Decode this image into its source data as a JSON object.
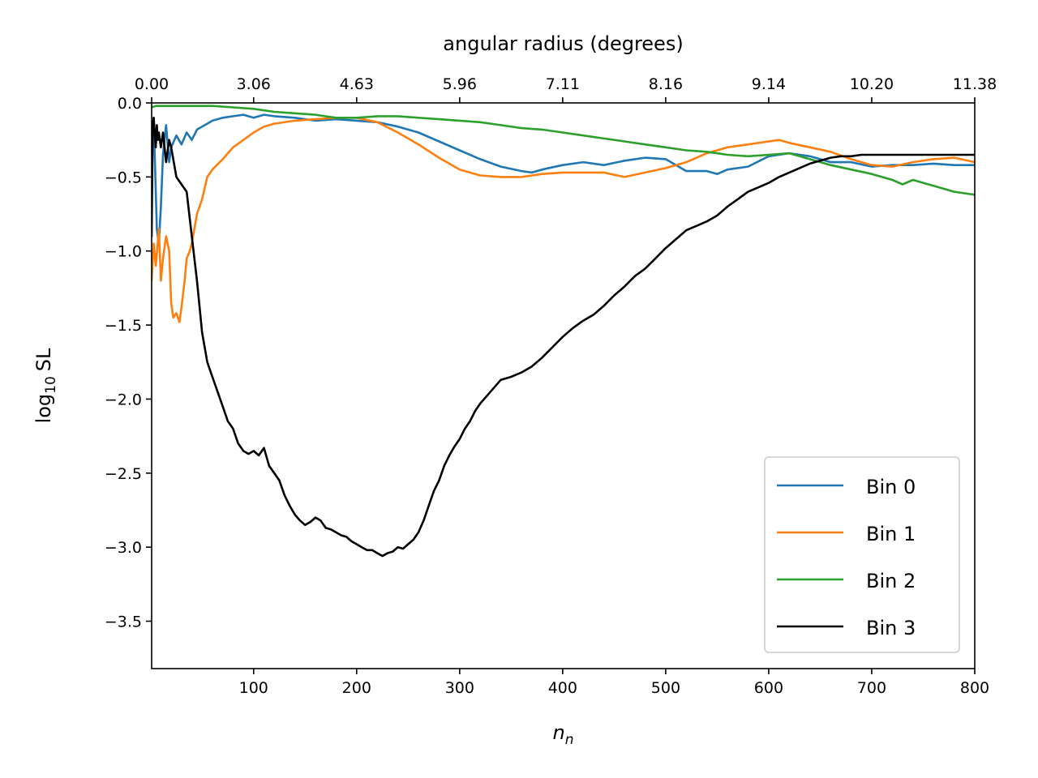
{
  "chart_data": {
    "type": "line",
    "title": "",
    "xlabel": "n_n",
    "ylabel": "log10 SL",
    "top_xlabel": "angular radius (degrees)",
    "xlim": [
      1,
      800
    ],
    "ylim": [
      -3.82,
      0.0
    ],
    "xticks": [
      100,
      200,
      300,
      400,
      500,
      600,
      700,
      800
    ],
    "yticks": [
      0.0,
      -0.5,
      -1.0,
      -1.5,
      -2.0,
      -2.5,
      -3.0,
      -3.5
    ],
    "ytick_labels": [
      "0.0",
      "−0.5",
      "−1.0",
      "−1.5",
      "−2.0",
      "−2.5",
      "−3.0",
      "−3.5"
    ],
    "top_xticks": [
      {
        "n": 1,
        "label": "0.00"
      },
      {
        "n": 100,
        "label": "3.06"
      },
      {
        "n": 200,
        "label": "4.63"
      },
      {
        "n": 300,
        "label": "5.96"
      },
      {
        "n": 400,
        "label": "7.11"
      },
      {
        "n": 500,
        "label": "8.16"
      },
      {
        "n": 600,
        "label": "9.14"
      },
      {
        "n": 700,
        "label": "10.20"
      },
      {
        "n": 800,
        "label": "11.38"
      }
    ],
    "legend_position": "lower-right",
    "grid": false,
    "series": [
      {
        "name": "Bin 0",
        "color": "#1f77b4",
        "x": [
          1,
          3,
          5,
          6,
          8,
          10,
          12,
          15,
          18,
          20,
          25,
          30,
          35,
          40,
          45,
          50,
          55,
          60,
          70,
          80,
          90,
          100,
          110,
          120,
          140,
          160,
          180,
          200,
          220,
          240,
          260,
          280,
          300,
          320,
          340,
          360,
          370,
          380,
          400,
          420,
          440,
          460,
          480,
          500,
          510,
          520,
          540,
          550,
          560,
          580,
          600,
          620,
          640,
          660,
          680,
          700,
          720,
          740,
          760,
          780,
          800
        ],
        "y": [
          -0.3,
          -0.1,
          -0.6,
          -0.85,
          -0.95,
          -0.7,
          -0.35,
          -0.15,
          -0.4,
          -0.3,
          -0.22,
          -0.28,
          -0.2,
          -0.25,
          -0.18,
          -0.16,
          -0.14,
          -0.12,
          -0.1,
          -0.09,
          -0.08,
          -0.1,
          -0.08,
          -0.09,
          -0.1,
          -0.12,
          -0.11,
          -0.12,
          -0.13,
          -0.16,
          -0.2,
          -0.26,
          -0.32,
          -0.38,
          -0.43,
          -0.46,
          -0.47,
          -0.45,
          -0.42,
          -0.4,
          -0.42,
          -0.39,
          -0.37,
          -0.38,
          -0.42,
          -0.46,
          -0.46,
          -0.48,
          -0.45,
          -0.43,
          -0.36,
          -0.34,
          -0.36,
          -0.4,
          -0.4,
          -0.43,
          -0.42,
          -0.42,
          -0.41,
          -0.42,
          -0.42
        ]
      },
      {
        "name": "Bin 1",
        "color": "#ff7f0e",
        "x": [
          1,
          3,
          5,
          8,
          10,
          12,
          15,
          18,
          20,
          22,
          25,
          28,
          30,
          33,
          35,
          38,
          40,
          45,
          50,
          55,
          60,
          70,
          80,
          90,
          100,
          110,
          120,
          140,
          160,
          180,
          200,
          220,
          240,
          260,
          280,
          300,
          320,
          340,
          360,
          380,
          400,
          420,
          440,
          460,
          480,
          500,
          520,
          540,
          560,
          580,
          600,
          610,
          620,
          640,
          660,
          680,
          700,
          720,
          740,
          760,
          780,
          800
        ],
        "y": [
          -1.2,
          -0.95,
          -1.1,
          -0.85,
          -1.2,
          -1.05,
          -0.9,
          -1.0,
          -1.35,
          -1.45,
          -1.42,
          -1.48,
          -1.38,
          -1.2,
          -1.05,
          -1.0,
          -0.95,
          -0.75,
          -0.65,
          -0.5,
          -0.45,
          -0.38,
          -0.3,
          -0.25,
          -0.2,
          -0.16,
          -0.14,
          -0.12,
          -0.11,
          -0.1,
          -0.1,
          -0.13,
          -0.2,
          -0.28,
          -0.37,
          -0.45,
          -0.49,
          -0.5,
          -0.5,
          -0.48,
          -0.47,
          -0.47,
          -0.47,
          -0.5,
          -0.47,
          -0.44,
          -0.4,
          -0.34,
          -0.3,
          -0.28,
          -0.26,
          -0.25,
          -0.27,
          -0.3,
          -0.33,
          -0.38,
          -0.42,
          -0.43,
          -0.4,
          -0.38,
          -0.37,
          -0.4
        ]
      },
      {
        "name": "Bin 2",
        "color": "#2ca02c",
        "x": [
          1,
          5,
          10,
          20,
          40,
          60,
          80,
          100,
          120,
          140,
          160,
          180,
          200,
          220,
          240,
          260,
          280,
          300,
          320,
          340,
          360,
          380,
          400,
          420,
          440,
          460,
          480,
          500,
          520,
          540,
          560,
          580,
          600,
          620,
          640,
          660,
          680,
          700,
          720,
          730,
          740,
          760,
          780,
          800
        ],
        "y": [
          -0.03,
          -0.02,
          -0.02,
          -0.02,
          -0.02,
          -0.02,
          -0.03,
          -0.04,
          -0.06,
          -0.07,
          -0.08,
          -0.1,
          -0.1,
          -0.09,
          -0.09,
          -0.1,
          -0.11,
          -0.12,
          -0.13,
          -0.15,
          -0.17,
          -0.18,
          -0.2,
          -0.22,
          -0.24,
          -0.26,
          -0.28,
          -0.3,
          -0.32,
          -0.33,
          -0.35,
          -0.36,
          -0.35,
          -0.34,
          -0.38,
          -0.42,
          -0.45,
          -0.48,
          -0.52,
          -0.55,
          -0.52,
          -0.56,
          -0.6,
          -0.62
        ]
      },
      {
        "name": "Bin 3",
        "color": "#000000",
        "x": [
          1,
          2,
          3,
          4,
          5,
          6,
          7,
          8,
          10,
          12,
          15,
          18,
          20,
          25,
          30,
          35,
          40,
          45,
          50,
          55,
          60,
          65,
          70,
          75,
          80,
          85,
          90,
          95,
          100,
          105,
          110,
          115,
          120,
          125,
          130,
          135,
          140,
          145,
          150,
          155,
          160,
          165,
          170,
          175,
          180,
          185,
          190,
          195,
          200,
          205,
          210,
          215,
          220,
          225,
          230,
          235,
          240,
          245,
          250,
          255,
          260,
          265,
          270,
          275,
          280,
          285,
          290,
          295,
          300,
          305,
          310,
          315,
          320,
          330,
          340,
          350,
          360,
          370,
          380,
          390,
          400,
          410,
          420,
          430,
          440,
          450,
          460,
          470,
          480,
          490,
          500,
          510,
          520,
          530,
          540,
          550,
          560,
          570,
          580,
          590,
          600,
          610,
          620,
          630,
          640,
          650,
          660,
          670,
          680,
          690,
          700,
          710,
          720,
          730,
          740,
          750,
          760,
          770,
          780,
          790,
          800
        ],
        "y": [
          -0.9,
          -0.15,
          -0.1,
          -0.2,
          -0.3,
          -0.15,
          -0.25,
          -0.2,
          -0.3,
          -0.2,
          -0.4,
          -0.25,
          -0.3,
          -0.5,
          -0.55,
          -0.6,
          -0.9,
          -1.2,
          -1.55,
          -1.75,
          -1.85,
          -1.95,
          -2.05,
          -2.15,
          -2.2,
          -2.3,
          -2.35,
          -2.37,
          -2.35,
          -2.38,
          -2.33,
          -2.45,
          -2.5,
          -2.55,
          -2.65,
          -2.72,
          -2.78,
          -2.82,
          -2.85,
          -2.83,
          -2.8,
          -2.82,
          -2.87,
          -2.88,
          -2.9,
          -2.92,
          -2.93,
          -2.96,
          -2.98,
          -3.0,
          -3.02,
          -3.02,
          -3.04,
          -3.06,
          -3.04,
          -3.03,
          -3.0,
          -3.01,
          -2.98,
          -2.95,
          -2.9,
          -2.82,
          -2.72,
          -2.62,
          -2.55,
          -2.45,
          -2.38,
          -2.32,
          -2.27,
          -2.2,
          -2.15,
          -2.08,
          -2.03,
          -1.95,
          -1.87,
          -1.85,
          -1.82,
          -1.78,
          -1.72,
          -1.65,
          -1.58,
          -1.52,
          -1.47,
          -1.43,
          -1.37,
          -1.3,
          -1.24,
          -1.17,
          -1.12,
          -1.05,
          -0.98,
          -0.92,
          -0.86,
          -0.83,
          -0.8,
          -0.76,
          -0.7,
          -0.65,
          -0.6,
          -0.57,
          -0.54,
          -0.5,
          -0.47,
          -0.44,
          -0.41,
          -0.39,
          -0.37,
          -0.36,
          -0.36,
          -0.35,
          -0.35,
          -0.35,
          -0.35,
          -0.35,
          -0.35,
          -0.35,
          -0.35,
          -0.35,
          -0.35,
          -0.35,
          -0.35
        ]
      }
    ]
  }
}
